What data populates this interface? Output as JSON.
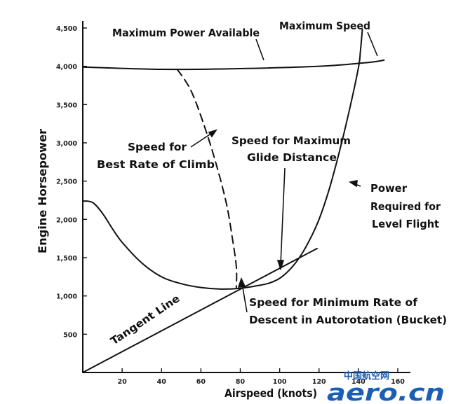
{
  "chart_data": {
    "type": "line",
    "xlabel": "Airspeed (knots)",
    "ylabel": "Engine Horsepower",
    "xlim": [
      0,
      160
    ],
    "ylim": [
      0,
      4500
    ],
    "x_ticks": [
      {
        "value": 20,
        "label": "20"
      },
      {
        "value": 40,
        "label": "40"
      },
      {
        "value": 60,
        "label": "60"
      },
      {
        "value": 80,
        "label": "80"
      },
      {
        "value": 100,
        "label": "100"
      },
      {
        "value": 120,
        "label": "120"
      },
      {
        "value": 140,
        "label": "140"
      },
      {
        "value": 160,
        "label": "160"
      }
    ],
    "y_ticks": [
      {
        "value": 500,
        "label": "500"
      },
      {
        "value": 1000,
        "label": "1,000"
      },
      {
        "value": 1500,
        "label": "1,500"
      },
      {
        "value": 2000,
        "label": "2,000"
      },
      {
        "value": 2500,
        "label": "2,500"
      },
      {
        "value": 3000,
        "label": "3,000"
      },
      {
        "value": 3500,
        "label": "3,500"
      },
      {
        "value": 4000,
        "label": "4,000"
      },
      {
        "value": 4500,
        "label": "4,500"
      }
    ],
    "grid": false,
    "legend": "none",
    "series": [
      {
        "name": "Maximum Power Available",
        "style": "solid",
        "points": [
          [
            0,
            3990
          ],
          [
            40,
            3960
          ],
          [
            80,
            3970
          ],
          [
            120,
            4000
          ],
          [
            145,
            4050
          ],
          [
            153,
            4080
          ]
        ]
      },
      {
        "name": "Power Required for Level Flight",
        "style": "solid",
        "points": [
          [
            0,
            2240
          ],
          [
            5,
            2220
          ],
          [
            10,
            2080
          ],
          [
            15,
            1880
          ],
          [
            20,
            1700
          ],
          [
            30,
            1430
          ],
          [
            40,
            1250
          ],
          [
            50,
            1160
          ],
          [
            60,
            1110
          ],
          [
            70,
            1090
          ],
          [
            80,
            1100
          ],
          [
            90,
            1140
          ],
          [
            95,
            1170
          ],
          [
            100,
            1230
          ],
          [
            105,
            1340
          ],
          [
            110,
            1500
          ],
          [
            115,
            1720
          ],
          [
            120,
            2000
          ],
          [
            125,
            2380
          ],
          [
            130,
            2850
          ],
          [
            135,
            3380
          ],
          [
            140,
            3980
          ],
          [
            141,
            4190
          ],
          [
            142,
            4480
          ]
        ]
      },
      {
        "name": "Speed for Best Rate of Climb",
        "style": "dashed",
        "points": [
          [
            48,
            3960
          ],
          [
            55,
            3680
          ],
          [
            62,
            3200
          ],
          [
            68,
            2700
          ],
          [
            73,
            2200
          ],
          [
            76,
            1750
          ],
          [
            78,
            1380
          ],
          [
            78,
            1110
          ]
        ]
      },
      {
        "name": "Tangent Line",
        "style": "solid",
        "points": [
          [
            0,
            0
          ],
          [
            119,
            1620
          ]
        ]
      }
    ],
    "annotations": [
      {
        "text": "Maximum Power Available"
      },
      {
        "text": "Maximum Speed"
      },
      {
        "text": "Speed for Best Rate of Climb",
        "lines": [
          "Speed for",
          "Best Rate of Climb"
        ]
      },
      {
        "text": "Speed for Maximum Glide Distance",
        "lines": [
          "Speed for Maximum",
          "Glide Distance"
        ]
      },
      {
        "text": "Power Required for Level Flight",
        "lines": [
          "Power",
          "Required for",
          "Level Flight"
        ]
      },
      {
        "text": "Tangent Line"
      },
      {
        "text": "Speed for Minimum Rate of Descent in Autorotation (Bucket)",
        "lines": [
          "Speed for Minimum Rate of",
          "Descent in Autorotation (Bucket)"
        ]
      }
    ]
  },
  "watermark": {
    "chinese": "中国航空网",
    "site": "aero.cn",
    "color": "#1b5fb4"
  }
}
